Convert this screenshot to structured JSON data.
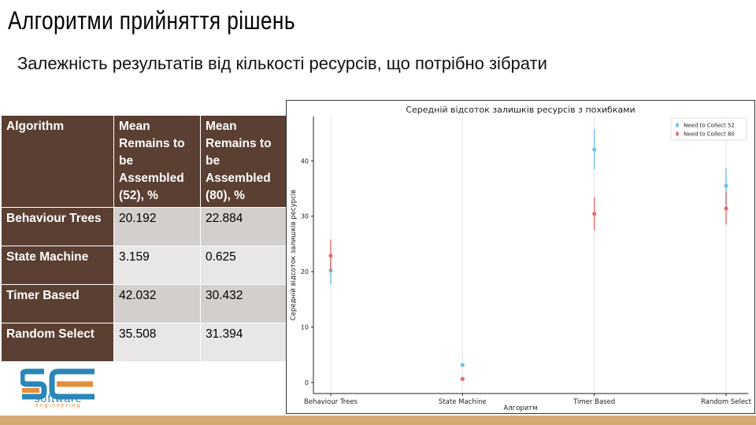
{
  "slide": {
    "title": "Алгоритми прийняття рішень",
    "subtitle": "Залежність результатів від кількості ресурсів, що потрібно зібрати"
  },
  "table": {
    "headers": [
      "Algorithm",
      "Mean Remains to be Assembled (52), %",
      "Mean Remains to be Assembled (80), %"
    ],
    "rows": [
      {
        "algorithm": "Behaviour Trees",
        "v52": "20.192",
        "v80": "22.884"
      },
      {
        "algorithm": "State Machine",
        "v52": "3.159",
        "v80": "0.625"
      },
      {
        "algorithm": "Timer Based",
        "v52": "42.032",
        "v80": "30.432"
      },
      {
        "algorithm": "Random Select",
        "v52": "35.508",
        "v80": "31.394"
      }
    ]
  },
  "logo": {
    "letters": "SE",
    "line1": "software",
    "line2": "engineering"
  },
  "chart_data": {
    "type": "scatter",
    "title": "Середній відсоток залишків ресурсів з похибками",
    "xlabel": "Алгоритм",
    "ylabel": "Середній відсоток залишків ресурсів",
    "categories": [
      "Behaviour Trees",
      "State Machine",
      "Timer Based",
      "Random Select"
    ],
    "ylim": [
      -2,
      48
    ],
    "yticks": [
      0,
      10,
      20,
      30,
      40
    ],
    "grid": "vertical",
    "legend_position": "top-right",
    "series": [
      {
        "name": "Need to Collect 52",
        "color": "#6ec1e4",
        "values": [
          20.192,
          3.159,
          42.032,
          35.508
        ],
        "err": [
          2.5,
          0.3,
          3.6,
          3.2
        ]
      },
      {
        "name": "Need to Collect 80",
        "color": "#e86a6a",
        "values": [
          22.884,
          0.625,
          30.432,
          31.394
        ],
        "err": [
          2.9,
          0.3,
          3.0,
          2.9
        ]
      }
    ]
  }
}
